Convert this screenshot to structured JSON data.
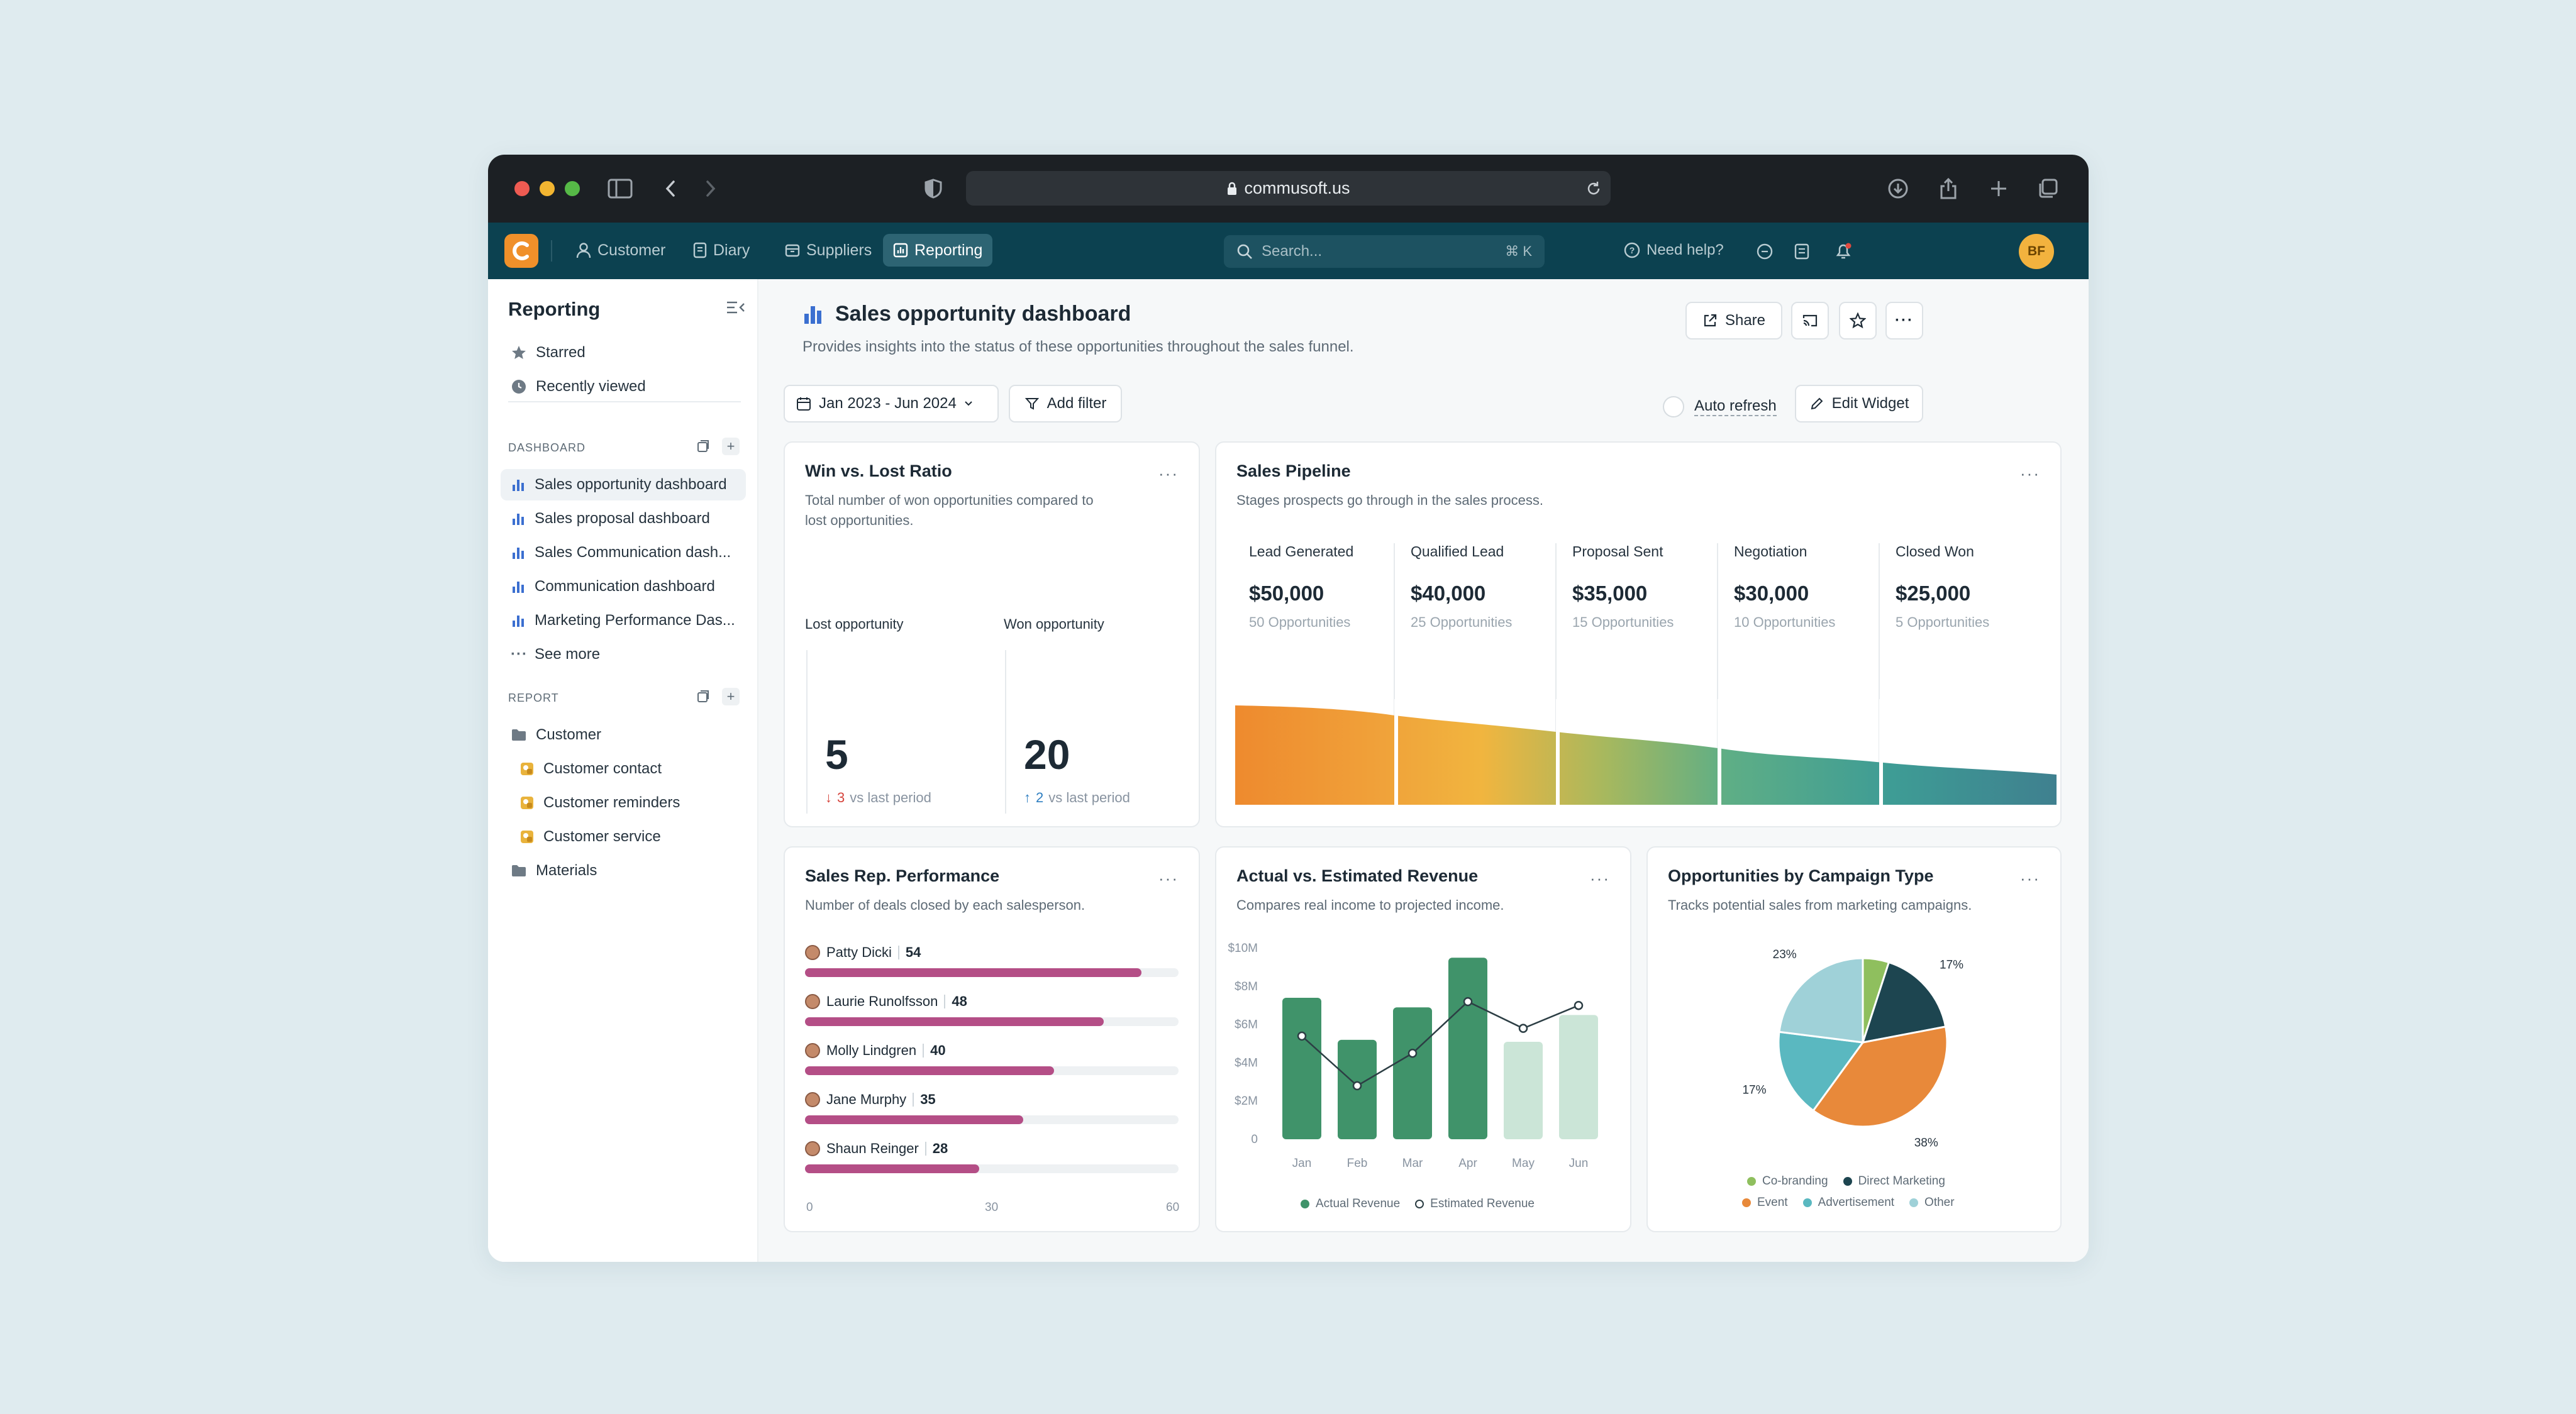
{
  "browser": {
    "url": "commusoft.us"
  },
  "appbar": {
    "nav": [
      {
        "label": "Customer",
        "icon": "person-icon"
      },
      {
        "label": "Diary",
        "icon": "diary-icon"
      },
      {
        "label": "Suppliers",
        "icon": "box-icon"
      },
      {
        "label": "Reporting",
        "icon": "chart-icon",
        "active": true
      }
    ],
    "search_placeholder": "Search...",
    "search_shortcut": "⌘ K",
    "help": "Need help?",
    "avatar": "BF"
  },
  "sidebar": {
    "title": "Reporting",
    "quick": [
      {
        "label": "Starred",
        "icon": "star-icon"
      },
      {
        "label": "Recently viewed",
        "icon": "clock-icon"
      }
    ],
    "dashboard_section": "DASHBOARD",
    "dashboards": [
      "Sales opportunity dashboard",
      "Sales proposal dashboard",
      "Sales Communication dash...",
      "Communication dashboard",
      "Marketing Performance Das..."
    ],
    "see_more": "See more",
    "report_section": "REPORT",
    "reports": [
      {
        "label": "Customer",
        "icon": "folder-icon",
        "level": 0
      },
      {
        "label": "Customer contact",
        "icon": "report-icon",
        "level": 1
      },
      {
        "label": "Customer reminders",
        "icon": "report-icon",
        "level": 1
      },
      {
        "label": "Customer service",
        "icon": "report-icon",
        "level": 1
      },
      {
        "label": "Materials",
        "icon": "folder-icon",
        "level": 0
      }
    ]
  },
  "page": {
    "title": "Sales opportunity dashboard",
    "description": "Provides insights into the status of these opportunities throughout the sales funnel.",
    "share": "Share",
    "date_range": "Jan 2023 - Jun 2024",
    "add_filter": "Add filter",
    "auto_refresh": "Auto refresh",
    "edit_widget": "Edit Widget"
  },
  "win_lost": {
    "title": "Win vs. Lost Ratio",
    "description_1": "Total number of won opportunities compared to",
    "description_2": "lost opportunities.",
    "lost_label": "Lost opportunity",
    "won_label": "Won opportunity",
    "lost_value": "5",
    "won_value": "20",
    "lost_delta": "3",
    "won_delta": "2",
    "vs_text": "vs last period",
    "colors": {
      "down": "#d6453d",
      "up": "#2f7fc1"
    }
  },
  "pipeline": {
    "title": "Sales Pipeline",
    "description": "Stages prospects go through in the sales process.",
    "stages": [
      {
        "stage": "Lead Generated",
        "value": "$50,000",
        "opps": "50 Opportunities"
      },
      {
        "stage": "Qualified Lead",
        "value": "$40,000",
        "opps": "25 Opportunities"
      },
      {
        "stage": "Proposal Sent",
        "value": "$35,000",
        "opps": "15 Opportunities"
      },
      {
        "stage": "Negotiation",
        "value": "$30,000",
        "opps": "10 Opportunities"
      },
      {
        "stage": "Closed Won",
        "value": "$25,000",
        "opps": "5 Opportunities"
      }
    ]
  },
  "rep_perf": {
    "title": "Sales Rep. Performance",
    "description": "Number of deals closed by each salesperson.",
    "reps": [
      {
        "name": "Patty Dicki",
        "value": 54
      },
      {
        "name": "Laurie Runolfsson",
        "value": 48
      },
      {
        "name": "Molly Lindgren",
        "value": 40
      },
      {
        "name": "Jane Murphy",
        "value": 35
      },
      {
        "name": "Shaun Reinger",
        "value": 28
      }
    ],
    "axis": [
      "0",
      "30",
      "60"
    ],
    "max": 60,
    "bar_color": "#b44e86"
  },
  "revenue": {
    "title": "Actual vs. Estimated Revenue",
    "description": "Compares real income to projected income.",
    "legend_actual": "Actual Revenue",
    "legend_estimated": "Estimated Revenue"
  },
  "campaign": {
    "title": "Opportunities by Campaign Type",
    "description": "Tracks potential sales from marketing campaigns.",
    "legend": [
      {
        "label": "Co-branding",
        "color": "#8fbf5e"
      },
      {
        "label": "Direct Marketing",
        "color": "#1d4550"
      },
      {
        "label": "Event",
        "color": "#e8893a"
      },
      {
        "label": "Advertisement",
        "color": "#5ab8c0"
      },
      {
        "label": "Other",
        "color": "#9fd1d8"
      }
    ]
  },
  "chart_data": [
    {
      "type": "bar",
      "title": "Actual vs. Estimated Revenue",
      "categories": [
        "Jan",
        "Feb",
        "Mar",
        "Apr",
        "May",
        "Jun"
      ],
      "yticks": [
        "0",
        "$2M",
        "$4M",
        "$6M",
        "$8M",
        "$10M"
      ],
      "ylim": [
        0,
        10
      ],
      "series": [
        {
          "name": "Actual Revenue",
          "kind": "bar",
          "values": [
            7.4,
            5.2,
            6.9,
            9.5,
            5.1,
            6.5
          ],
          "color": "#40936a",
          "projected_color": "#cbe5d7",
          "projected_from_index": 4
        },
        {
          "name": "Estimated Revenue",
          "kind": "line",
          "values": [
            5.4,
            2.8,
            4.5,
            7.2,
            5.8,
            7.0
          ],
          "color": "#2c3e44"
        }
      ]
    },
    {
      "type": "pie",
      "title": "Opportunities by Campaign Type",
      "slices": [
        {
          "label": "Co-branding",
          "value": 5,
          "text": "5%",
          "color": "#8fbf5e"
        },
        {
          "label": "Direct Marketing",
          "value": 17,
          "text": "17%",
          "color": "#1d4550"
        },
        {
          "label": "Event",
          "value": 38,
          "text": "38%",
          "color": "#e8893a"
        },
        {
          "label": "Advertisement",
          "value": 17,
          "text": "17%",
          "color": "#5ab8c0"
        },
        {
          "label": "Other",
          "value": 23,
          "text": "23%",
          "color": "#9fd1d8"
        }
      ]
    }
  ]
}
